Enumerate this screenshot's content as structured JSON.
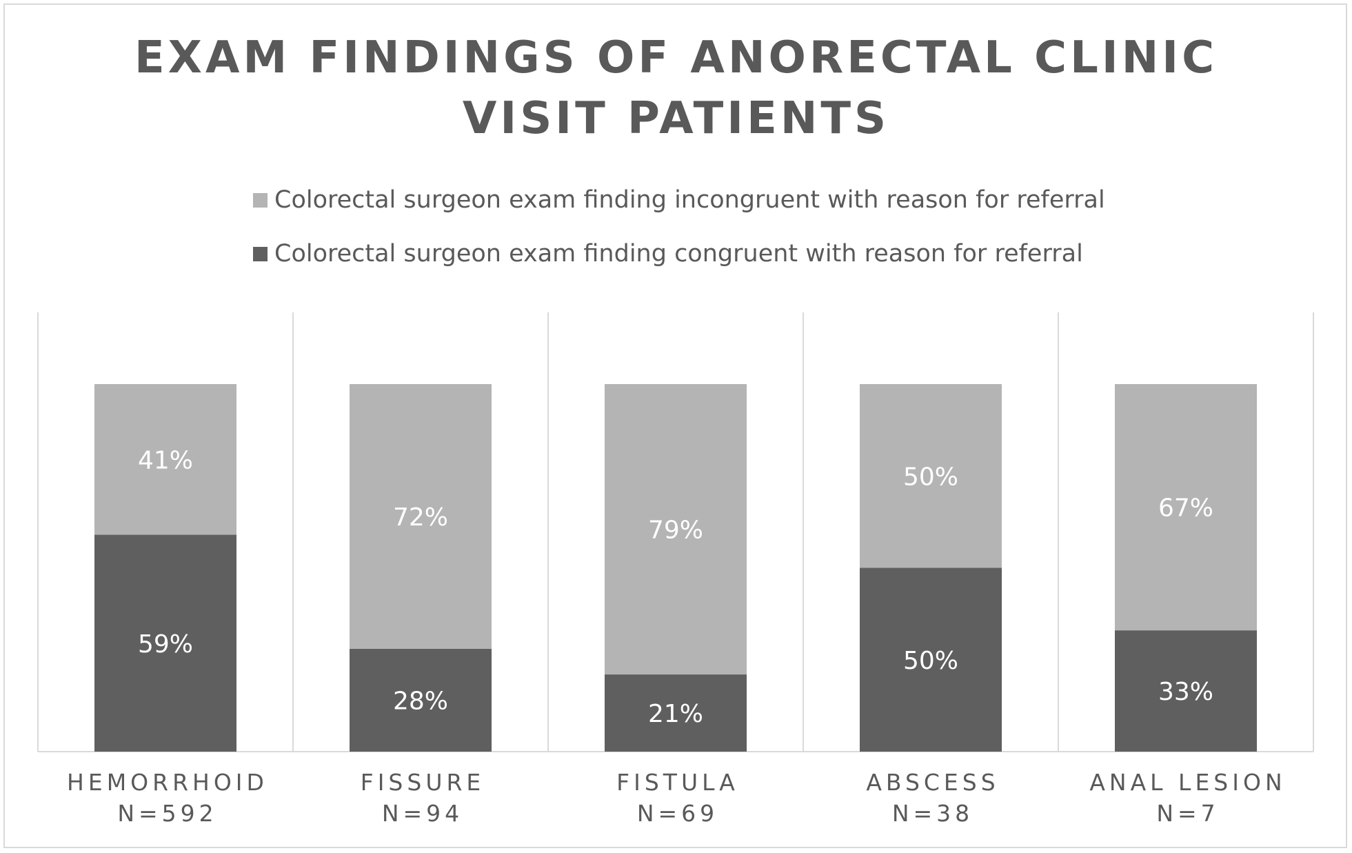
{
  "chart_data": {
    "type": "bar",
    "stacked": true,
    "title_lines": [
      "EXAM FINDINGS OF ANORECTAL CLINIC",
      "VISIT PATIENTS"
    ],
    "categories": [
      {
        "name": "HEMORRHOID",
        "n": "N=592"
      },
      {
        "name": "FISSURE",
        "n": "N=94"
      },
      {
        "name": "FISTULA",
        "n": "N=69"
      },
      {
        "name": "ABSCESS",
        "n": "N=38"
      },
      {
        "name": "ANAL LESION",
        "n": "N=7"
      }
    ],
    "series": [
      {
        "name": "Colorectal surgeon exam finding congruent with reason for referral",
        "color": "#5f5f5f",
        "values": [
          59,
          28,
          21,
          50,
          33
        ],
        "labels": [
          "59%",
          "28%",
          "21%",
          "50%",
          "33%"
        ]
      },
      {
        "name": "Colorectal surgeon exam finding incongruent with reason for referral",
        "color": "#b4b4b4",
        "values": [
          41,
          72,
          79,
          50,
          67
        ],
        "labels": [
          "41%",
          "72%",
          "79%",
          "50%",
          "67%"
        ]
      }
    ],
    "ylim": [
      0,
      100
    ],
    "legend_position": "top",
    "gridlines": "vertical",
    "grid_color": "#d9d9d9",
    "text_color": "#595959"
  }
}
